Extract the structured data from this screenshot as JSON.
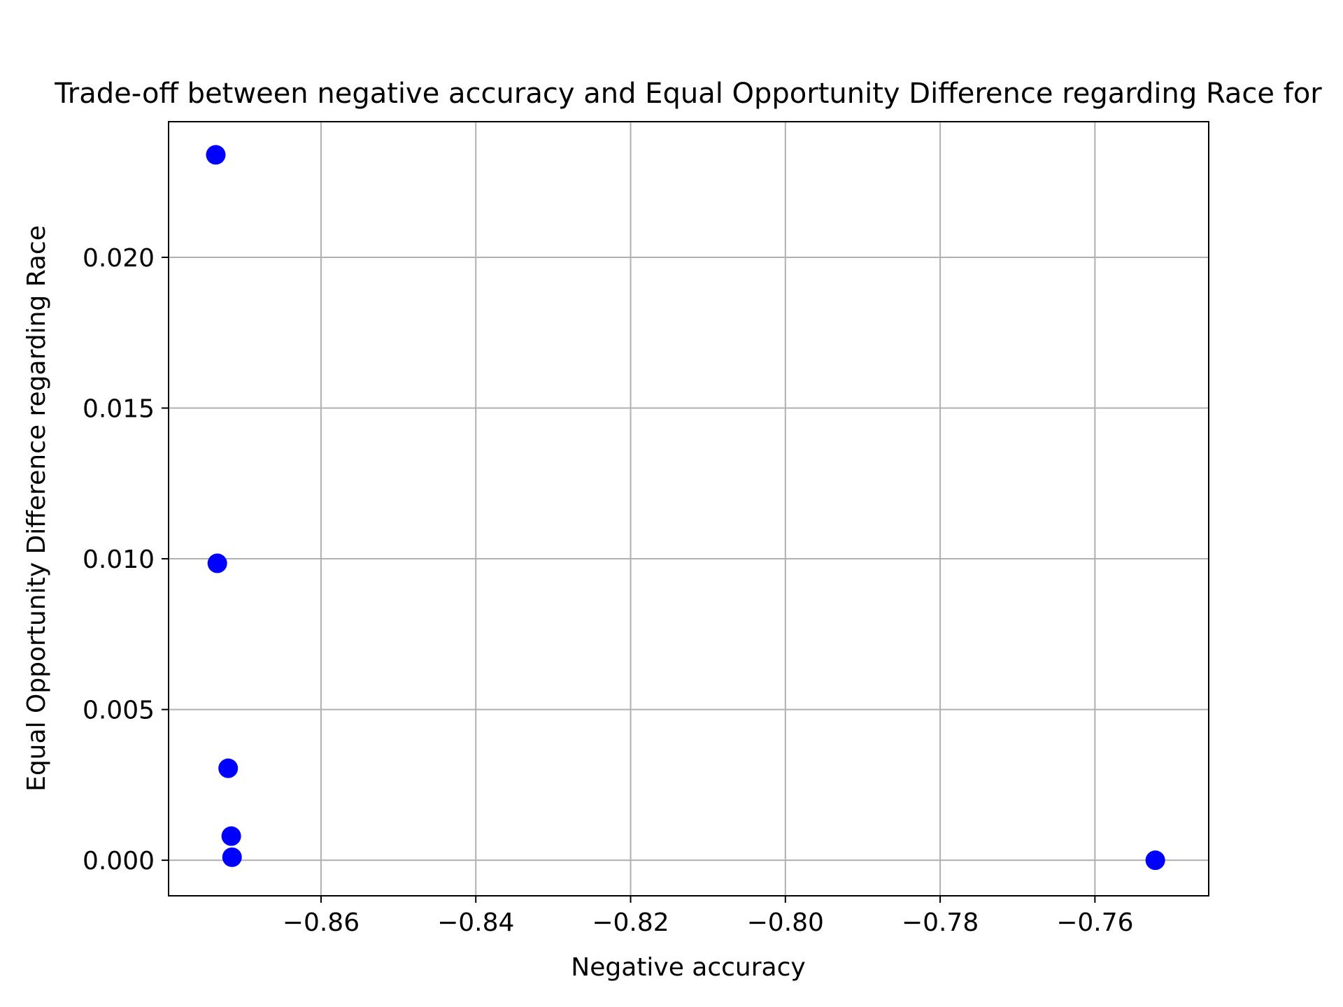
{
  "chart_data": {
    "type": "scatter",
    "title": "Trade-off between negative accuracy and Equal Opportunity Difference regarding Race for",
    "xlabel": "Negative accuracy",
    "ylabel": "Equal Opportunity Difference regarding Race",
    "xlim": [
      -0.8797,
      -0.7453
    ],
    "ylim": [
      -0.00118,
      0.0245
    ],
    "xticks": [
      -0.86,
      -0.84,
      -0.82,
      -0.8,
      -0.78,
      -0.76
    ],
    "xtick_labels": [
      "−0.86",
      "−0.84",
      "−0.82",
      "−0.80",
      "−0.78",
      "−0.76"
    ],
    "yticks": [
      0.0,
      0.005,
      0.01,
      0.015,
      0.02
    ],
    "ytick_labels": [
      "0.000",
      "0.005",
      "0.010",
      "0.015",
      "0.020"
    ],
    "grid": true,
    "series": [
      {
        "color": "#0000ff",
        "points": [
          {
            "x": -0.8736,
            "y": 0.0234
          },
          {
            "x": -0.8734,
            "y": 0.00985
          },
          {
            "x": -0.872,
            "y": 0.00305
          },
          {
            "x": -0.8716,
            "y": 0.0008
          },
          {
            "x": -0.8715,
            "y": 0.0001
          },
          {
            "x": -0.7522,
            "y": 0.0
          }
        ]
      }
    ]
  }
}
